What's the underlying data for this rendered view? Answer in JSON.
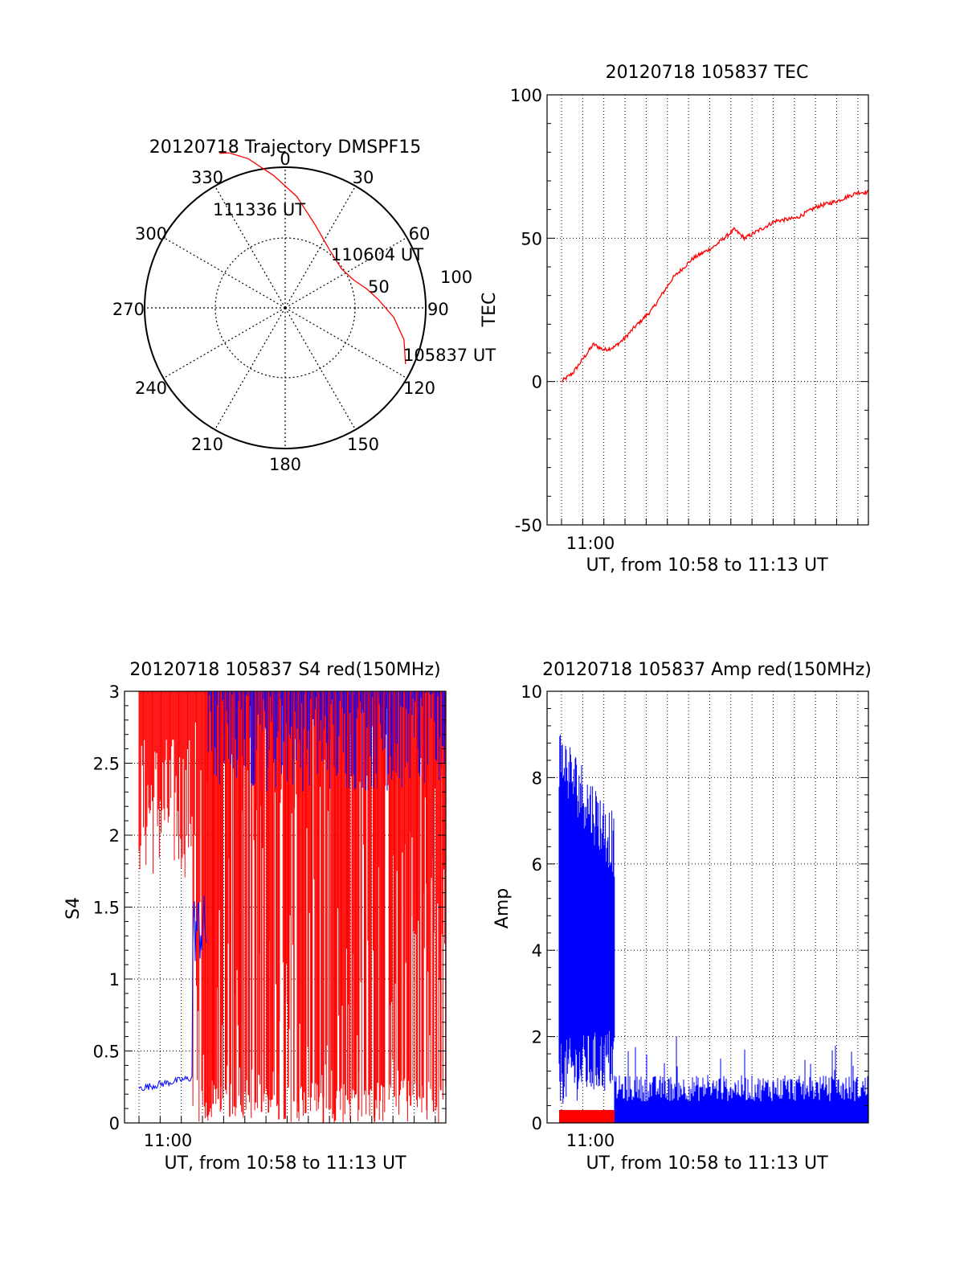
{
  "colors": {
    "red": "#ff0000",
    "blue": "#0000ff",
    "axis": "#000000",
    "grid": "#000000"
  },
  "polar": {
    "title": "20120718 Trajectory DMSPF15",
    "azimuth_labels": [
      "0",
      "30",
      "60",
      "90",
      "120",
      "150",
      "180",
      "210",
      "240",
      "270",
      "300",
      "330"
    ],
    "ring_labels": [
      "50",
      "100"
    ],
    "start_label": "105837 UT",
    "mid_label": "110604 UT",
    "end_label": "111336 UT",
    "chart_data": {
      "type": "scatter",
      "title": "20120718 Trajectory DMSPF15",
      "coord": "polar (azimuth deg, zenith deg)",
      "series": [
        {
          "points": [
            {
              "az": 115,
              "zen": 95
            },
            {
              "az": 105,
              "zen": 88
            },
            {
              "az": 95,
              "zen": 78
            },
            {
              "az": 85,
              "zen": 67
            },
            {
              "az": 77,
              "zen": 60
            },
            {
              "az": 68,
              "zen": 53
            },
            {
              "az": 55,
              "zen": 49
            },
            {
              "az": 38,
              "zen": 52
            },
            {
              "az": 20,
              "zen": 63
            },
            {
              "az": 6,
              "zen": 80
            },
            {
              "az": -5,
              "zen": 95
            },
            {
              "az": -14,
              "zen": 110
            },
            {
              "az": -20,
              "zen": 118
            },
            {
              "az": -23,
              "zen": 120
            }
          ]
        }
      ],
      "rlim": [
        0,
        100
      ]
    }
  },
  "tec": {
    "title": "20120718 105837 TEC",
    "xlabel": "UT, from 10:58 to 11:13 UT",
    "ylabel": "TEC",
    "yticks": [
      "100",
      "50",
      "0",
      "-50"
    ],
    "xtick_label": "11:00",
    "chart_data": {
      "type": "line",
      "xlim": [
        "10:58",
        "11:13"
      ],
      "ylim": [
        -50,
        100
      ],
      "series": [
        {
          "color": "#ff0000",
          "x": [
            "10:58:37",
            "10:59:10",
            "10:59:40",
            "11:00:10",
            "11:00:40",
            "11:01:10",
            "11:01:40",
            "11:02:10",
            "11:03:00",
            "11:04:00",
            "11:05:00",
            "11:06:00",
            "11:07:00",
            "11:07:30",
            "11:08:00",
            "11:09:00",
            "11:10:00",
            "11:11:00",
            "11:12:00",
            "11:13:00",
            "11:13:30"
          ],
          "y": [
            0,
            3,
            8,
            13,
            11,
            12,
            15,
            19,
            25,
            36,
            43,
            47,
            53,
            50,
            52,
            56,
            57,
            61,
            63,
            66,
            66
          ]
        }
      ]
    }
  },
  "s4": {
    "title": "20120718 105837 S4 red(150MHz)",
    "xlabel": "UT, from 10:58 to 11:13 UT",
    "ylabel": "S4",
    "yticks": [
      "3",
      "2.5",
      "2",
      "1.5",
      "1",
      "0.5",
      "0"
    ],
    "xtick_label": "11:00",
    "chart_data": {
      "type": "line",
      "xlim": [
        "10:58",
        "11:13"
      ],
      "ylim": [
        0,
        3
      ],
      "series": [
        {
          "color": "#ff0000",
          "note": "dense spikes 0-3 throughout",
          "x": [
            "10:58:37",
            "11:01:00",
            "11:13:30"
          ],
          "y": [
            3,
            3,
            3
          ]
        },
        {
          "color": "#0000ff",
          "x": [
            "10:58:37",
            "10:59:30",
            "11:00:00",
            "11:00:40",
            "11:01:20",
            "11:01:40",
            "11:02:00",
            "11:13:30"
          ],
          "y": [
            0.25,
            0.27,
            0.28,
            0.3,
            0.32,
            1.3,
            3,
            3
          ]
        }
      ]
    }
  },
  "amp": {
    "title": "20120718 105837 Amp red(150MHz)",
    "xlabel": "UT, from 10:58 to 11:13 UT",
    "ylabel": "Amp",
    "yticks": [
      "10",
      "8",
      "6",
      "4",
      "2",
      "0"
    ],
    "xtick_label": "11:00",
    "chart_data": {
      "type": "line",
      "xlim": [
        "10:58",
        "11:13"
      ],
      "ylim": [
        0,
        10
      ],
      "series": [
        {
          "color": "#ff0000",
          "x": [
            "10:58:37",
            "11:01:10"
          ],
          "y": [
            0.2,
            0.2
          ]
        },
        {
          "color": "#0000ff",
          "x": [
            "10:58:37",
            "10:59:00",
            "10:59:40",
            "11:00:20",
            "11:01:00",
            "11:01:10",
            "11:02:00",
            "11:05:00",
            "11:10:00",
            "11:13:30"
          ],
          "y": [
            8,
            6,
            5,
            4.5,
            4,
            0.6,
            0.6,
            0.5,
            0.5,
            0.5
          ]
        }
      ]
    }
  }
}
